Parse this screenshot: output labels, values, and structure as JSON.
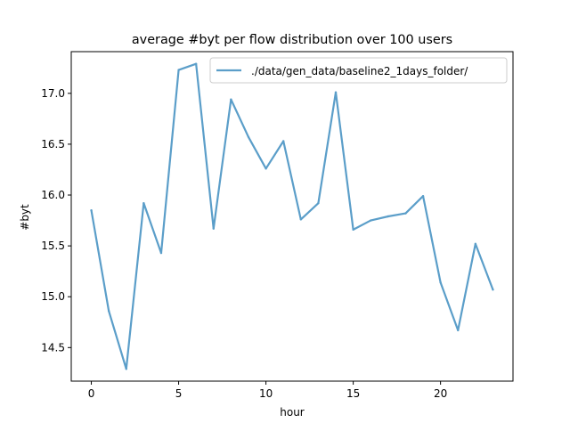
{
  "chart_data": {
    "type": "line",
    "title": "average #byt per flow distribution over 100 users",
    "xlabel": "hour",
    "ylabel": "#byt",
    "xlim": [
      -1.15,
      24.15
    ],
    "ylim": [
      14.17,
      17.41
    ],
    "xticks": [
      0,
      5,
      10,
      15,
      20
    ],
    "xtick_labels": [
      "0",
      "5",
      "10",
      "15",
      "20"
    ],
    "yticks": [
      14.5,
      15.0,
      15.5,
      16.0,
      16.5,
      17.0
    ],
    "ytick_labels": [
      "14.5",
      "15.0",
      "15.5",
      "16.0",
      "16.5",
      "17.0"
    ],
    "grid": false,
    "legend_position": "top-right",
    "colors": {
      "series": "#5b9ec9"
    },
    "series": [
      {
        "name": "./data/gen_data/baseline2_1days_folder/",
        "x": [
          0,
          1,
          2,
          3,
          4,
          5,
          6,
          7,
          8,
          9,
          10,
          11,
          12,
          13,
          14,
          15,
          16,
          17,
          18,
          19,
          20,
          21,
          22,
          23
        ],
        "values": [
          15.85,
          14.86,
          14.29,
          15.92,
          15.43,
          17.23,
          17.29,
          15.67,
          16.94,
          16.57,
          16.26,
          16.53,
          15.76,
          15.92,
          17.01,
          15.66,
          15.75,
          15.79,
          15.82,
          15.99,
          15.14,
          14.67,
          15.52,
          15.07
        ]
      }
    ]
  }
}
